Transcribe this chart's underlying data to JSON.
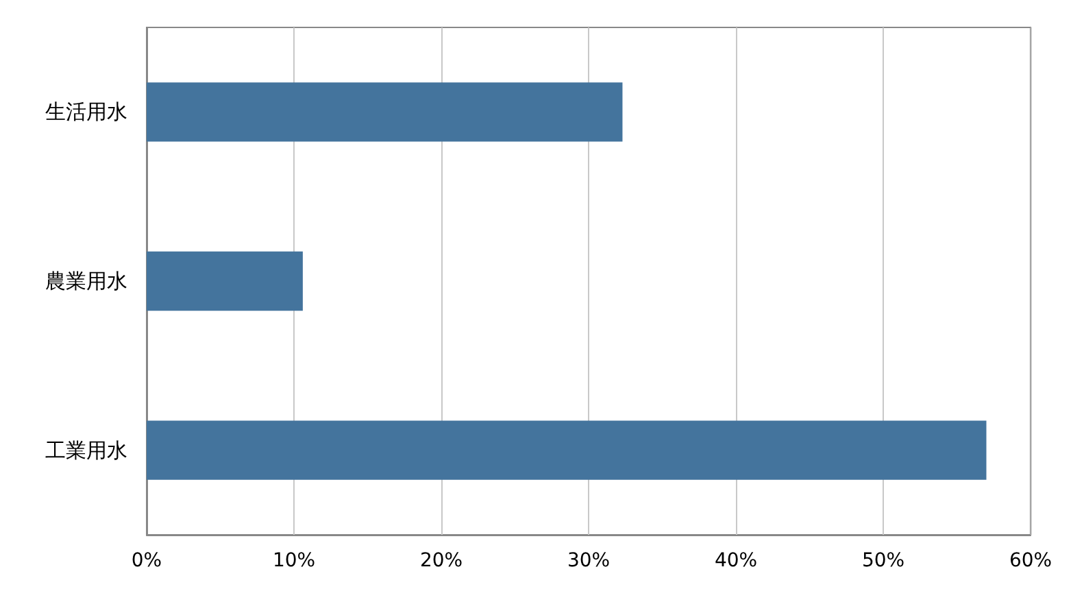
{
  "chart_data": {
    "type": "bar",
    "orientation": "horizontal",
    "categories": [
      "生活用水",
      "農業用水",
      "工業用水"
    ],
    "values": [
      32.3,
      10.6,
      57.0
    ],
    "color": "#44749d",
    "xlim": [
      0,
      60
    ],
    "xticks": [
      {
        "value": 0,
        "label": "0%"
      },
      {
        "value": 10,
        "label": "10%"
      },
      {
        "value": 20,
        "label": "20%"
      },
      {
        "value": 30,
        "label": "30%"
      },
      {
        "value": 40,
        "label": "40%"
      },
      {
        "value": 50,
        "label": "50%"
      },
      {
        "value": 60,
        "label": "60%"
      }
    ],
    "grid": "x"
  }
}
